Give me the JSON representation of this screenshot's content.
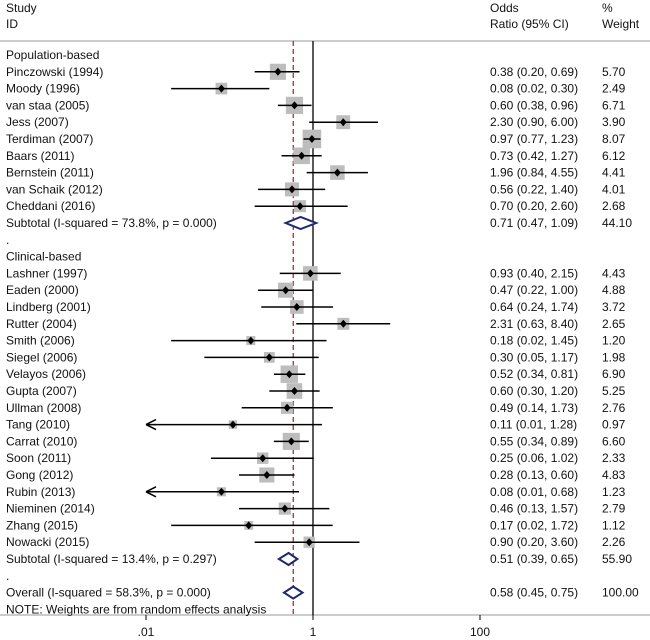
{
  "header": {
    "study_l1": "Study",
    "study_l2": "ID",
    "or_l1": "Odds",
    "or_l2": "Ratio (95% CI)",
    "w_l1": "%",
    "w_l2": "Weight"
  },
  "chart_data": {
    "type": "forest",
    "scale": "log",
    "x_ticks": [
      ".01",
      "1",
      "100"
    ],
    "x_tick_values": [
      0.01,
      1,
      100
    ],
    "null_line": 1,
    "overall_line": 0.58,
    "rows": [
      {
        "kind": "heading",
        "label": "Population-based"
      },
      {
        "kind": "study",
        "label": "Pinczowski (1994)",
        "or": 0.38,
        "lo": 0.2,
        "hi": 0.69,
        "ci": "0.38 (0.20, 0.69)",
        "weight": "5.70"
      },
      {
        "kind": "study",
        "label": "Moody (1996)",
        "or": 0.08,
        "lo": 0.02,
        "hi": 0.3,
        "ci": "0.08 (0.02, 0.30)",
        "weight": "2.49"
      },
      {
        "kind": "study",
        "label": "van staa (2005)",
        "or": 0.6,
        "lo": 0.38,
        "hi": 0.96,
        "ci": "0.60 (0.38, 0.96)",
        "weight": "6.71"
      },
      {
        "kind": "study",
        "label": "Jess (2007)",
        "or": 2.3,
        "lo": 0.9,
        "hi": 6.0,
        "ci": "2.30 (0.90, 6.00)",
        "weight": "3.90"
      },
      {
        "kind": "study",
        "label": "Terdiman (2007)",
        "or": 0.97,
        "lo": 0.77,
        "hi": 1.23,
        "ci": "0.97 (0.77, 1.23)",
        "weight": "8.07"
      },
      {
        "kind": "study",
        "label": "Baars (2011)",
        "or": 0.73,
        "lo": 0.42,
        "hi": 1.27,
        "ci": "0.73 (0.42, 1.27)",
        "weight": "6.12"
      },
      {
        "kind": "study",
        "label": "Bernstein (2011)",
        "or": 1.96,
        "lo": 0.84,
        "hi": 4.55,
        "ci": "1.96 (0.84, 4.55)",
        "weight": "4.41"
      },
      {
        "kind": "study",
        "label": "van Schaik (2012)",
        "or": 0.56,
        "lo": 0.22,
        "hi": 1.4,
        "ci": "0.56 (0.22, 1.40)",
        "weight": "4.01"
      },
      {
        "kind": "study",
        "label": "Cheddani (2016)",
        "or": 0.7,
        "lo": 0.2,
        "hi": 2.6,
        "ci": "0.70 (0.20, 2.60)",
        "weight": "2.68"
      },
      {
        "kind": "subtotal",
        "label": "Subtotal  (I-squared = 73.8%, p = 0.000)",
        "or": 0.71,
        "lo": 0.47,
        "hi": 1.09,
        "ci": "0.71 (0.47, 1.09)",
        "weight": "44.10"
      },
      {
        "kind": "dot",
        "label": "."
      },
      {
        "kind": "heading",
        "label": "Clinical-based"
      },
      {
        "kind": "study",
        "label": "Lashner (1997)",
        "or": 0.93,
        "lo": 0.4,
        "hi": 2.15,
        "ci": "0.93 (0.40, 2.15)",
        "weight": "4.43"
      },
      {
        "kind": "study",
        "label": "Eaden (2000)",
        "or": 0.47,
        "lo": 0.22,
        "hi": 1.0,
        "ci": "0.47 (0.22, 1.00)",
        "weight": "4.88"
      },
      {
        "kind": "study",
        "label": "Lindberg (2001)",
        "or": 0.64,
        "lo": 0.24,
        "hi": 1.74,
        "ci": "0.64 (0.24, 1.74)",
        "weight": "3.72"
      },
      {
        "kind": "study",
        "label": "Rutter (2004)",
        "or": 2.31,
        "lo": 0.63,
        "hi": 8.4,
        "ci": "2.31 (0.63, 8.40)",
        "weight": "2.65"
      },
      {
        "kind": "study",
        "label": "Smith (2006)",
        "or": 0.18,
        "lo": 0.02,
        "hi": 1.45,
        "ci": "0.18 (0.02, 1.45)",
        "weight": "1.20"
      },
      {
        "kind": "study",
        "label": "Siegel (2006)",
        "or": 0.3,
        "lo": 0.05,
        "hi": 1.17,
        "ci": "0.30 (0.05, 1.17)",
        "weight": "1.98"
      },
      {
        "kind": "study",
        "label": "Velayos (2006)",
        "or": 0.52,
        "lo": 0.34,
        "hi": 0.81,
        "ci": "0.52 (0.34, 0.81)",
        "weight": "6.90"
      },
      {
        "kind": "study",
        "label": "Gupta (2007)",
        "or": 0.6,
        "lo": 0.3,
        "hi": 1.2,
        "ci": "0.60 (0.30, 1.20)",
        "weight": "5.25"
      },
      {
        "kind": "study",
        "label": "Ullman (2008)",
        "or": 0.49,
        "lo": 0.14,
        "hi": 1.73,
        "ci": "0.49 (0.14, 1.73)",
        "weight": "2.76"
      },
      {
        "kind": "study",
        "label": "Tang (2010)",
        "or": 0.11,
        "lo": 0.01,
        "hi": 1.28,
        "ci": "0.11 (0.01, 1.28)",
        "weight": "0.97",
        "arrow": true
      },
      {
        "kind": "study",
        "label": "Carrat (2010)",
        "or": 0.55,
        "lo": 0.34,
        "hi": 0.89,
        "ci": "0.55 (0.34, 0.89)",
        "weight": "6.60"
      },
      {
        "kind": "study",
        "label": "Soon (2011)",
        "or": 0.25,
        "lo": 0.06,
        "hi": 1.02,
        "ci": "0.25 (0.06, 1.02)",
        "weight": "2.33"
      },
      {
        "kind": "study",
        "label": "Gong (2012)",
        "or": 0.28,
        "lo": 0.13,
        "hi": 0.6,
        "ci": "0.28 (0.13, 0.60)",
        "weight": "4.83"
      },
      {
        "kind": "study",
        "label": "Rubin (2013)",
        "or": 0.08,
        "lo": 0.01,
        "hi": 0.68,
        "ci": "0.08 (0.01, 0.68)",
        "weight": "1.23",
        "arrow": true
      },
      {
        "kind": "study",
        "label": "Nieminen (2014)",
        "or": 0.46,
        "lo": 0.13,
        "hi": 1.57,
        "ci": "0.46 (0.13, 1.57)",
        "weight": "2.79"
      },
      {
        "kind": "study",
        "label": "Zhang (2015)",
        "or": 0.17,
        "lo": 0.02,
        "hi": 1.72,
        "ci": "0.17 (0.02, 1.72)",
        "weight": "1.12"
      },
      {
        "kind": "study",
        "label": "Nowacki (2015)",
        "or": 0.9,
        "lo": 0.2,
        "hi": 3.6,
        "ci": "0.90 (0.20, 3.60)",
        "weight": "2.26"
      },
      {
        "kind": "subtotal",
        "label": "Subtotal  (I-squared = 13.4%, p = 0.297)",
        "or": 0.51,
        "lo": 0.39,
        "hi": 0.65,
        "ci": "0.51 (0.39, 0.65)",
        "weight": "55.90"
      },
      {
        "kind": "dot",
        "label": "."
      },
      {
        "kind": "overall",
        "label": "Overall  (I-squared = 58.3%, p = 0.000)",
        "or": 0.58,
        "lo": 0.45,
        "hi": 0.75,
        "ci": "0.58 (0.45, 0.75)",
        "weight": "100.00"
      },
      {
        "kind": "note",
        "label": "NOTE: Weights are from random effects analysis"
      }
    ]
  },
  "colors": {
    "diamond": "#1f2a6e",
    "box": "#bdbdbd",
    "line": "#000000",
    "overall_line": "#a0202e",
    "rule": "#999999"
  }
}
